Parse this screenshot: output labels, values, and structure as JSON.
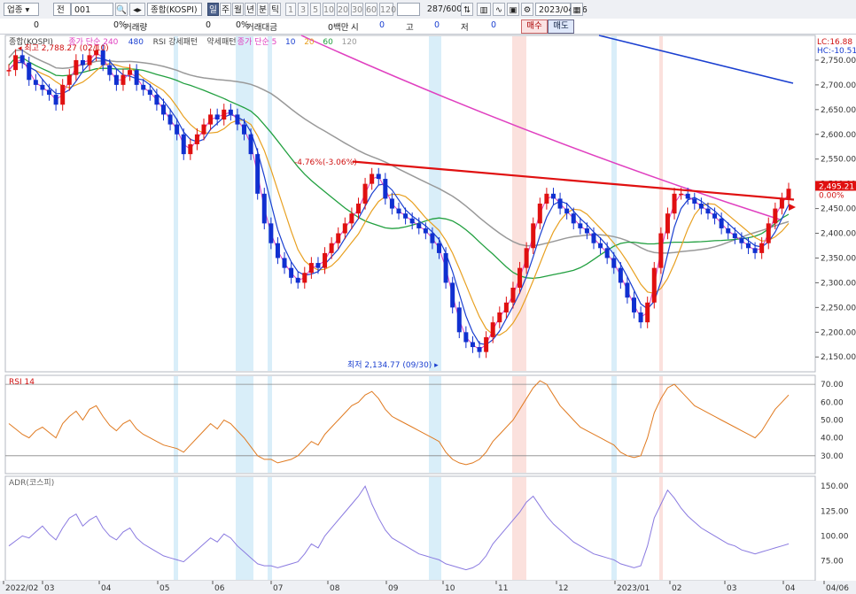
{
  "toolbar": {
    "market": "업종",
    "scope": "전",
    "code": "001",
    "name": "종합(KOSPI)",
    "periods": [
      "일",
      "주",
      "월",
      "년",
      "분",
      "틱"
    ],
    "active_period": "일",
    "minutes": [
      "1",
      "3",
      "5",
      "10",
      "20",
      "30",
      "60",
      "120"
    ],
    "count": "287",
    "count_total": "/600",
    "date": "2023/04/06"
  },
  "infobar": {
    "volume_val": "0",
    "volume_pct": "0%",
    "volume_label": "거래량",
    "value_val": "0",
    "value_pct": "0%",
    "value_label": "거래대금",
    "unit": "0백만",
    "open_label": "시",
    "open_val": "0",
    "high_label": "고",
    "high_val": "0",
    "low_label": "저",
    "low_val": "0",
    "sell_label": "매수",
    "buy_label": "매도"
  },
  "chart_data": {
    "type": "candlestick",
    "price_panel": {
      "legend": [
        "종합(KOSPI)",
        "종가 단순 240",
        "480",
        "RSI 강세패턴",
        "약세패턴",
        "종가 단순 5",
        "10",
        "20",
        "60",
        "120"
      ],
      "legend_colors": [
        "#444444",
        "#e040c0",
        "#1a3fd0",
        "#444444",
        "#444444",
        "#e040c0",
        "#1a3fd0",
        "#e8a020",
        "#22a040",
        "#999999"
      ],
      "high_annotation": "최고 2,788.27 (02/10)",
      "low_annotation": "최저 2,134.77 (09/30)",
      "trendline_annotation": "-4.76%(-3.06%)",
      "lc_label": "LC:16.88",
      "hc_label": "HC:-10.51",
      "current_price": "2,495.21",
      "current_change": "0.00%",
      "y_ticks": [
        "2,750.00",
        "2,700.00",
        "2,650.00",
        "2,600.00",
        "2,550.00",
        "2,500.00",
        "2,450.00",
        "2,400.00",
        "2,350.00",
        "2,300.00",
        "2,250.00",
        "2,200.00",
        "2,150.00"
      ],
      "ylim": [
        2120,
        2800
      ],
      "closes": [
        2730,
        2760,
        2745,
        2710,
        2700,
        2690,
        2680,
        2660,
        2700,
        2720,
        2750,
        2740,
        2760,
        2770,
        2740,
        2720,
        2700,
        2720,
        2730,
        2700,
        2690,
        2680,
        2660,
        2640,
        2620,
        2600,
        2560,
        2580,
        2600,
        2620,
        2640,
        2630,
        2650,
        2640,
        2620,
        2600,
        2560,
        2480,
        2420,
        2380,
        2350,
        2330,
        2310,
        2300,
        2320,
        2340,
        2330,
        2360,
        2380,
        2400,
        2420,
        2440,
        2460,
        2500,
        2520,
        2510,
        2470,
        2450,
        2440,
        2430,
        2420,
        2410,
        2400,
        2380,
        2360,
        2300,
        2250,
        2200,
        2180,
        2170,
        2160,
        2190,
        2220,
        2240,
        2260,
        2290,
        2330,
        2370,
        2420,
        2460,
        2480,
        2470,
        2450,
        2440,
        2420,
        2410,
        2400,
        2380,
        2370,
        2350,
        2330,
        2300,
        2270,
        2240,
        2220,
        2260,
        2330,
        2400,
        2440,
        2480,
        2480,
        2470,
        2460,
        2450,
        2440,
        2430,
        2410,
        2400,
        2390,
        2380,
        2370,
        2360,
        2380,
        2420,
        2450,
        2470,
        2490
      ]
    },
    "rsi_panel": {
      "title": "RSI 14",
      "y_ticks": [
        "70.00",
        "60.00",
        "50.00",
        "40.00",
        "30.00"
      ],
      "ylim": [
        20,
        75
      ],
      "values": [
        48,
        45,
        42,
        40,
        44,
        46,
        43,
        40,
        48,
        52,
        55,
        50,
        56,
        58,
        52,
        47,
        44,
        48,
        50,
        45,
        42,
        40,
        38,
        36,
        35,
        34,
        32,
        36,
        40,
        44,
        48,
        45,
        50,
        48,
        44,
        40,
        35,
        30,
        28,
        28,
        26,
        27,
        28,
        30,
        34,
        38,
        36,
        42,
        46,
        50,
        54,
        58,
        60,
        64,
        66,
        62,
        56,
        52,
        50,
        48,
        46,
        44,
        42,
        40,
        38,
        32,
        28,
        26,
        25,
        26,
        28,
        32,
        38,
        42,
        46,
        50,
        56,
        62,
        68,
        72,
        70,
        64,
        58,
        54,
        50,
        46,
        44,
        42,
        40,
        38,
        36,
        32,
        30,
        29,
        30,
        40,
        54,
        62,
        68,
        70,
        66,
        62,
        58,
        56,
        54,
        52,
        50,
        48,
        46,
        44,
        42,
        40,
        44,
        50,
        56,
        60,
        64
      ]
    },
    "adr_panel": {
      "title": "ADR(코스피)",
      "y_ticks": [
        "150.00",
        "125.00",
        "100.00",
        "75.00"
      ],
      "ylim": [
        55,
        160
      ],
      "values": [
        90,
        95,
        100,
        98,
        104,
        110,
        102,
        96,
        108,
        118,
        122,
        110,
        116,
        120,
        108,
        100,
        96,
        104,
        108,
        98,
        92,
        88,
        84,
        80,
        78,
        76,
        74,
        80,
        86,
        92,
        98,
        94,
        102,
        98,
        90,
        84,
        78,
        72,
        70,
        70,
        68,
        70,
        72,
        74,
        82,
        92,
        88,
        100,
        108,
        116,
        124,
        132,
        140,
        150,
        132,
        118,
        106,
        98,
        94,
        90,
        86,
        82,
        80,
        78,
        76,
        72,
        70,
        68,
        66,
        68,
        72,
        80,
        92,
        100,
        108,
        116,
        124,
        134,
        140,
        130,
        120,
        112,
        106,
        100,
        94,
        90,
        86,
        82,
        80,
        78,
        76,
        72,
        70,
        68,
        70,
        90,
        118,
        132,
        146,
        138,
        128,
        120,
        114,
        108,
        104,
        100,
        96,
        92,
        90,
        86,
        84,
        82,
        84,
        86,
        88,
        90,
        92
      ]
    },
    "x_ticks": [
      "2022/02",
      "03",
      "04",
      "05",
      "06",
      "07",
      "08",
      "09",
      "10",
      "11",
      "12",
      "2023/01",
      "02",
      "03",
      "04",
      "04/06"
    ]
  }
}
